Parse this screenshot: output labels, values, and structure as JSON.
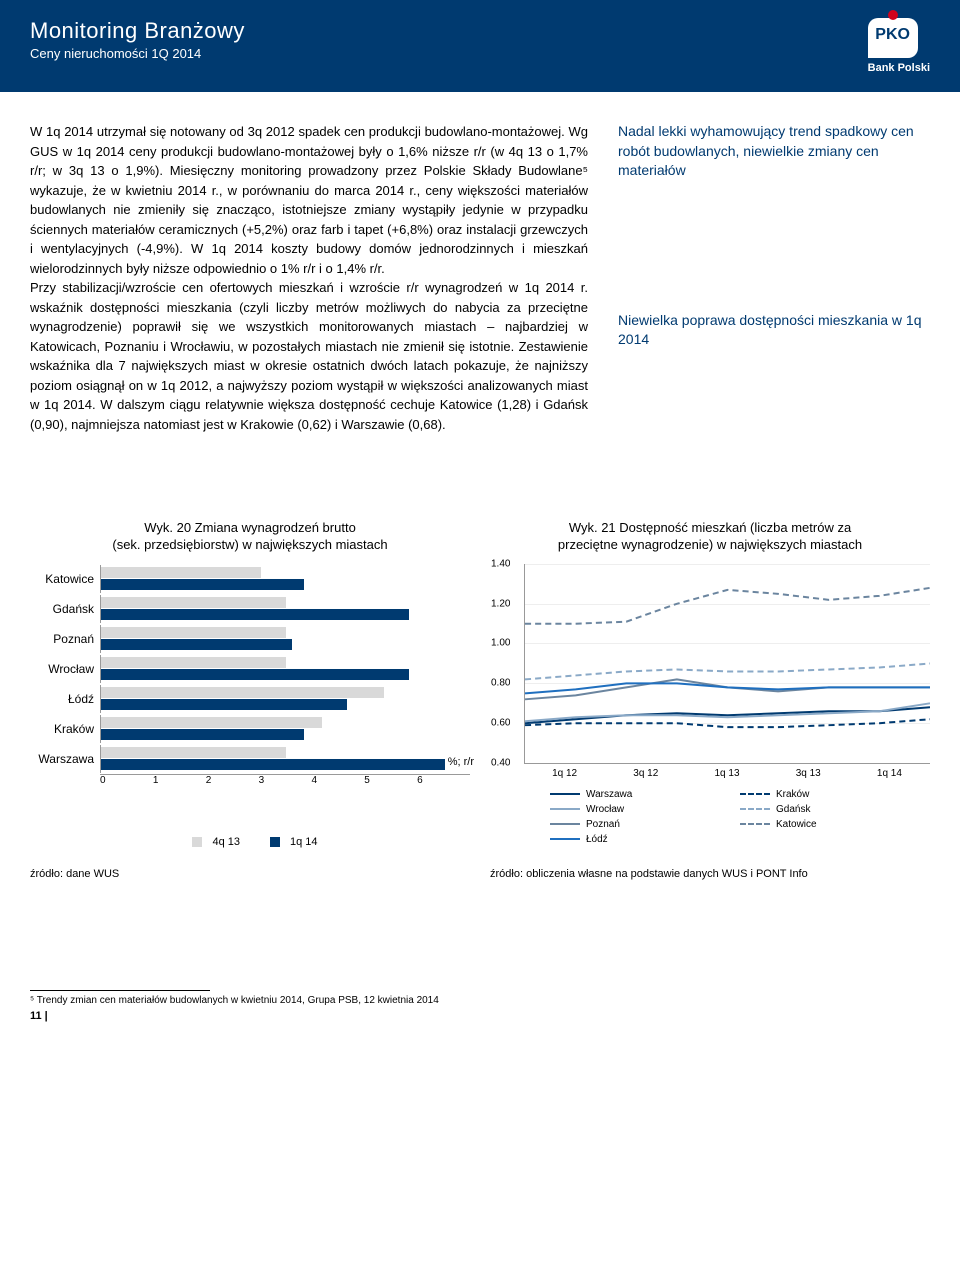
{
  "header": {
    "title": "Monitoring Branżowy",
    "subtitle": "Ceny nieruchomości 1Q 2014",
    "logo_text": "PKO",
    "logo_label": "Bank Polski"
  },
  "body_text": "W 1q 2014 utrzymał się notowany od 3q 2012 spadek cen produkcji budowlano-montażowej. Wg GUS w 1q 2014 ceny produkcji budowlano-montażowej były o 1,6% niższe r/r (w 4q 13 o 1,7% r/r; w 3q 13 o 1,9%). Miesięczny monitoring prowadzony przez Polskie Składy Budowlane⁵ wykazuje, że w kwietniu 2014 r., w porównaniu do marca 2014 r., ceny większości materiałów budowlanych nie zmieniły się znacząco, istotniejsze zmiany wystąpiły jedynie w przypadku ściennych materiałów ceramicznych (+5,2%) oraz farb i tapet (+6,8%) oraz instalacji grzewczych i wentylacyjnych (-4,9%). W 1q 2014 koszty budowy domów jednorodzinnych i mieszkań wielorodzinnych były niższe odpowiednio o 1% r/r i o 1,4% r/r.\nPrzy stabilizacji/wzroście cen ofertowych mieszkań i wzroście r/r wynagrodzeń w 1q 2014 r. wskaźnik dostępności mieszkania (czyli liczby metrów możliwych do nabycia za przeciętne wynagrodzenie) poprawił się we wszystkich monitorowanych miastach – najbardziej w Katowicach, Poznaniu i Wrocławiu, w pozostałych miastach nie zmienił się istotnie. Zestawienie wskaźnika dla 7 największych miast w okresie ostatnich dwóch latach pokazuje, że najniższy poziom osiągnął on w 1q 2012, a najwyższy poziom wystąpił w większości analizowanych miast w 1q 2014. W dalszym ciągu relatywnie większa dostępność cechuje Katowice (1,28) i Gdańsk (0,90), najmniejsza natomiast jest w Krakowie (0,62) i Warszawie (0,68).",
  "side_note_1": "Nadal lekki wyhamowujący trend spadkowy cen robót budowlanych, niewielkie zmiany cen materiałów",
  "side_note_2": "Niewielka poprawa dostępności mieszkania w 1q 2014",
  "chart20": {
    "type": "bar",
    "title": "Wyk. 20  Zmiana wynagrodzeń brutto\n(sek. przedsiębiorstw) w największych miastach",
    "categories": [
      "Katowice",
      "Gdańsk",
      "Poznań",
      "Wrocław",
      "Łódź",
      "Kraków",
      "Warszawa"
    ],
    "series": [
      {
        "name": "4q 13",
        "color": "#d9d9d9",
        "values": [
          2.6,
          3.0,
          3.0,
          3.0,
          4.6,
          3.6,
          3.0
        ]
      },
      {
        "name": "1q 14",
        "color": "#003a70",
        "values": [
          3.3,
          5.0,
          3.1,
          5.0,
          4.0,
          3.3,
          5.6
        ]
      }
    ],
    "xmax": 6,
    "xticks": [
      0,
      1,
      2,
      3,
      4,
      5,
      6
    ],
    "unit_label": "%; r/r",
    "source": "źródło: dane WUS"
  },
  "chart21": {
    "type": "line",
    "title": "Wyk. 21  Dostępność mieszkań (liczba metrów za\nprzeciętne wynagrodzenie) w największych miastach",
    "ylim": [
      0.4,
      1.4
    ],
    "yticks": [
      0.4,
      0.6,
      0.8,
      1.0,
      1.2,
      1.4
    ],
    "x_labels": [
      "1q 12",
      "3q 12",
      "1q 13",
      "3q 13",
      "1q 14"
    ],
    "series": [
      {
        "name": "Warszawa",
        "color": "#003a70",
        "dash": "solid",
        "values": [
          0.6,
          0.62,
          0.64,
          0.65,
          0.64,
          0.65,
          0.66,
          0.66,
          0.68
        ]
      },
      {
        "name": "Wrocław",
        "color": "#8aa9c7",
        "dash": "solid",
        "values": [
          0.61,
          0.63,
          0.64,
          0.64,
          0.63,
          0.64,
          0.65,
          0.66,
          0.7
        ]
      },
      {
        "name": "Poznań",
        "color": "#6b859f",
        "dash": "solid",
        "values": [
          0.72,
          0.74,
          0.78,
          0.82,
          0.78,
          0.76,
          0.78,
          0.78,
          0.78
        ]
      },
      {
        "name": "Łódź",
        "color": "#1f6fbf",
        "dash": "solid",
        "values": [
          0.75,
          0.77,
          0.8,
          0.8,
          0.78,
          0.77,
          0.78,
          0.78,
          0.78
        ]
      },
      {
        "name": "Kraków",
        "color": "#003a70",
        "dash": "dashed",
        "values": [
          0.59,
          0.6,
          0.6,
          0.6,
          0.58,
          0.58,
          0.59,
          0.6,
          0.62
        ]
      },
      {
        "name": "Gdańsk",
        "color": "#8aa9c7",
        "dash": "dashed",
        "values": [
          0.82,
          0.84,
          0.86,
          0.87,
          0.86,
          0.86,
          0.87,
          0.88,
          0.9
        ]
      },
      {
        "name": "Katowice",
        "color": "#6b859f",
        "dash": "dashed",
        "values": [
          1.1,
          1.1,
          1.11,
          1.2,
          1.27,
          1.25,
          1.22,
          1.24,
          1.28
        ]
      }
    ],
    "source": "źródło: obliczenia własne na podstawie danych WUS i PONT Info"
  },
  "footnote": "⁵ Trendy zmian cen materiałów budowlanych w kwietniu 2014, Grupa PSB, 12 kwietnia 2014",
  "page": "11 |"
}
